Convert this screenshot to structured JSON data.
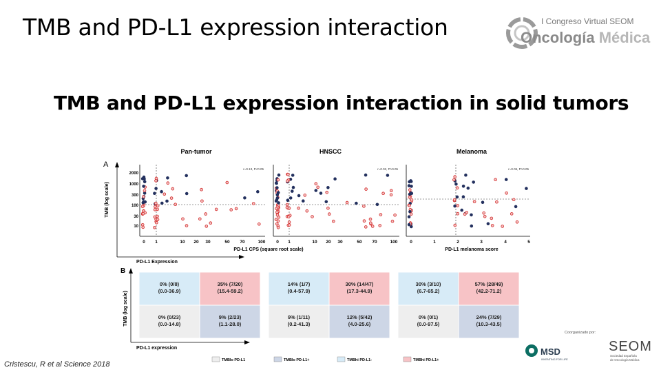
{
  "slide": {
    "title": "TMB and PD-L1 expression interaction",
    "subtitle": "TMB and PD-L1 expression interaction in solid tumors",
    "citation": "Cristescu, R et al Science 2018"
  },
  "logo": {
    "line1": "I Congreso Virtual SEOM",
    "word1": "Oncología",
    "word2": "Médica",
    "icon": "oncology-ring-icon"
  },
  "figure": {
    "panel_a_letter": "A",
    "panel_b_letter": "B",
    "subplot_titles": [
      "Pan-tumor",
      "HNSCC",
      "Melanoma"
    ],
    "stats": [
      "r=0.13, P<0.05",
      "r=0.02, P>0.05",
      "r=0.05, P>0.05"
    ],
    "y_axis_label": "TMB (log scale)",
    "y_ticks": [
      "2000",
      "1000",
      "300",
      "100",
      "30",
      "10"
    ],
    "x_ticks_cps": [
      "0",
      "1",
      "10",
      "20",
      "30",
      "50",
      "70",
      "100"
    ],
    "x_ticks_score": [
      "0",
      "1",
      "2",
      "3",
      "4",
      "5"
    ],
    "x_label_cps": "PD-L1 CPS (square root scale)",
    "x_label_score": "PD-L1 melanoma score",
    "x_axis_bottom_label": "PD-L1 Expression",
    "grid_y_label": "TMB (log scale)",
    "grid_x_label": "PD-L1 expression",
    "grid": [
      [
        {
          "value": "0% (0/8)",
          "ci": "(0.0-36.9)",
          "color": "#d7ebf7"
        },
        {
          "value": "35% (7/20)",
          "ci": "(15.4-59.2)",
          "color": "#f7c3c6"
        },
        {
          "value": "14% (1/7)",
          "ci": "(0.4-57.9)",
          "color": "#d7ebf7"
        },
        {
          "value": "30% (14/47)",
          "ci": "(17.3-44.9)",
          "color": "#f7c3c6"
        },
        {
          "value": "30% (3/10)",
          "ci": "(6.7-65.2)",
          "color": "#d7ebf7"
        },
        {
          "value": "57% (28/49)",
          "ci": "(42.2-71.2)",
          "color": "#f7c3c6"
        }
      ],
      [
        {
          "value": "0% (0/23)",
          "ci": "(0.0-14.8)",
          "color": "#eeeeee"
        },
        {
          "value": "9% (2/23)",
          "ci": "(1.1-28.0)",
          "color": "#cdd6e6"
        },
        {
          "value": "9% (1/11)",
          "ci": "(0.2-41.3)",
          "color": "#eeeeee"
        },
        {
          "value": "12% (5/42)",
          "ci": "(4.0-25.6)",
          "color": "#cdd6e6"
        },
        {
          "value": "0% (0/1)",
          "ci": "(0.0-97.5)",
          "color": "#eeeeee"
        },
        {
          "value": "24% (7/29)",
          "ci": "(10.3-43.5)",
          "color": "#cdd6e6"
        }
      ]
    ],
    "legend": [
      {
        "label": "TMBlo PD-L1",
        "color": "#eeeeee"
      },
      {
        "label": "TMBlo PD-L1+",
        "color": "#cdd6e6"
      },
      {
        "label": "TMBhi PD-L1-",
        "color": "#d7ebf7"
      },
      {
        "label": "TMBhi PD-L1+",
        "color": "#f7c3c6"
      }
    ],
    "point_colors": {
      "red": "#d42a2a",
      "navy": "#23305e"
    }
  },
  "sponsors": {
    "organized_by": "Coorganizado por:",
    "msd_name": "MSD",
    "msd_tagline": "INVENTING FOR LIFE",
    "seom_name": "SEOM",
    "seom_tagline_1": "Sociedad Española",
    "seom_tagline_2": "de Oncología Médica"
  }
}
